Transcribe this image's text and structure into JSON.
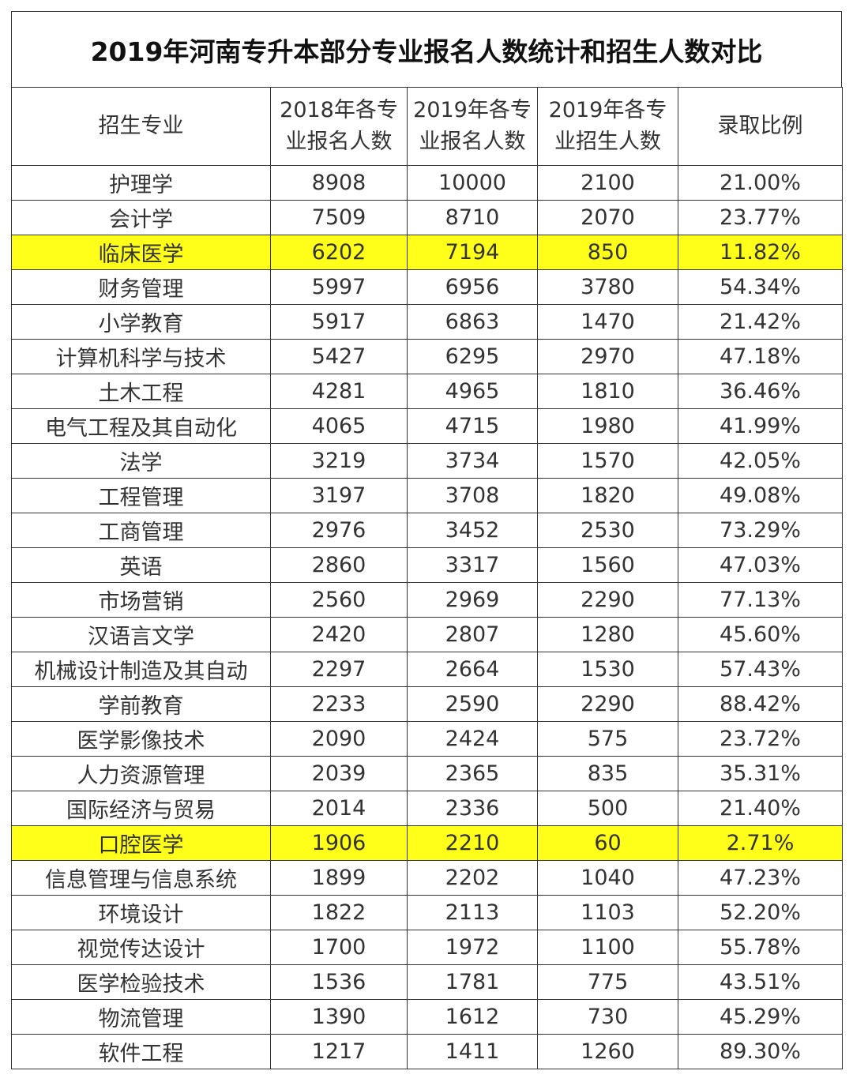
{
  "title": "2019年河南专升本部分专业报名人数统计和招生人数对比",
  "headers": {
    "major": "招生专业",
    "reg2018": [
      "2018年各专",
      "业报名人数"
    ],
    "reg2019": [
      "2019年各专",
      "业报名人数"
    ],
    "enroll2019": [
      "2019年各专",
      "业招生人数"
    ],
    "ratio": "录取比例"
  },
  "highlight_color": "#ffff1a",
  "rows": [
    {
      "major": "护理学",
      "reg2018": "8908",
      "reg2019": "10000",
      "enroll2019": "2100",
      "ratio": "21.00%",
      "highlight": false
    },
    {
      "major": "会计学",
      "reg2018": "7509",
      "reg2019": "8710",
      "enroll2019": "2070",
      "ratio": "23.77%",
      "highlight": false
    },
    {
      "major": "临床医学",
      "reg2018": "6202",
      "reg2019": "7194",
      "enroll2019": "850",
      "ratio": "11.82%",
      "highlight": true
    },
    {
      "major": "财务管理",
      "reg2018": "5997",
      "reg2019": "6956",
      "enroll2019": "3780",
      "ratio": "54.34%",
      "highlight": false
    },
    {
      "major": "小学教育",
      "reg2018": "5917",
      "reg2019": "6863",
      "enroll2019": "1470",
      "ratio": "21.42%",
      "highlight": false
    },
    {
      "major": "计算机科学与技术",
      "reg2018": "5427",
      "reg2019": "6295",
      "enroll2019": "2970",
      "ratio": "47.18%",
      "highlight": false
    },
    {
      "major": "土木工程",
      "reg2018": "4281",
      "reg2019": "4965",
      "enroll2019": "1810",
      "ratio": "36.46%",
      "highlight": false
    },
    {
      "major": "电气工程及其自动化",
      "reg2018": "4065",
      "reg2019": "4715",
      "enroll2019": "1980",
      "ratio": "41.99%",
      "highlight": false
    },
    {
      "major": "法学",
      "reg2018": "3219",
      "reg2019": "3734",
      "enroll2019": "1570",
      "ratio": "42.05%",
      "highlight": false
    },
    {
      "major": "工程管理",
      "reg2018": "3197",
      "reg2019": "3708",
      "enroll2019": "1820",
      "ratio": "49.08%",
      "highlight": false
    },
    {
      "major": "工商管理",
      "reg2018": "2976",
      "reg2019": "3452",
      "enroll2019": "2530",
      "ratio": "73.29%",
      "highlight": false
    },
    {
      "major": "英语",
      "reg2018": "2860",
      "reg2019": "3317",
      "enroll2019": "1560",
      "ratio": "47.03%",
      "highlight": false
    },
    {
      "major": "市场营销",
      "reg2018": "2560",
      "reg2019": "2969",
      "enroll2019": "2290",
      "ratio": "77.13%",
      "highlight": false
    },
    {
      "major": "汉语言文学",
      "reg2018": "2420",
      "reg2019": "2807",
      "enroll2019": "1280",
      "ratio": "45.60%",
      "highlight": false
    },
    {
      "major": "机械设计制造及其自动",
      "reg2018": "2297",
      "reg2019": "2664",
      "enroll2019": "1530",
      "ratio": "57.43%",
      "highlight": false
    },
    {
      "major": "学前教育",
      "reg2018": "2233",
      "reg2019": "2590",
      "enroll2019": "2290",
      "ratio": "88.42%",
      "highlight": false
    },
    {
      "major": "医学影像技术",
      "reg2018": "2090",
      "reg2019": "2424",
      "enroll2019": "575",
      "ratio": "23.72%",
      "highlight": false
    },
    {
      "major": "人力资源管理",
      "reg2018": "2039",
      "reg2019": "2365",
      "enroll2019": "835",
      "ratio": "35.31%",
      "highlight": false
    },
    {
      "major": "国际经济与贸易",
      "reg2018": "2014",
      "reg2019": "2336",
      "enroll2019": "500",
      "ratio": "21.40%",
      "highlight": false
    },
    {
      "major": "口腔医学",
      "reg2018": "1906",
      "reg2019": "2210",
      "enroll2019": "60",
      "ratio": "2.71%",
      "highlight": true
    },
    {
      "major": "信息管理与信息系统",
      "reg2018": "1899",
      "reg2019": "2202",
      "enroll2019": "1040",
      "ratio": "47.23%",
      "highlight": false
    },
    {
      "major": "环境设计",
      "reg2018": "1822",
      "reg2019": "2113",
      "enroll2019": "1103",
      "ratio": "52.20%",
      "highlight": false
    },
    {
      "major": "视觉传达设计",
      "reg2018": "1700",
      "reg2019": "1972",
      "enroll2019": "1100",
      "ratio": "55.78%",
      "highlight": false
    },
    {
      "major": "医学检验技术",
      "reg2018": "1536",
      "reg2019": "1781",
      "enroll2019": "775",
      "ratio": "43.51%",
      "highlight": false
    },
    {
      "major": "物流管理",
      "reg2018": "1390",
      "reg2019": "1612",
      "enroll2019": "730",
      "ratio": "45.29%",
      "highlight": false
    },
    {
      "major": "软件工程",
      "reg2018": "1217",
      "reg2019": "1411",
      "enroll2019": "1260",
      "ratio": "89.30%",
      "highlight": false
    }
  ]
}
